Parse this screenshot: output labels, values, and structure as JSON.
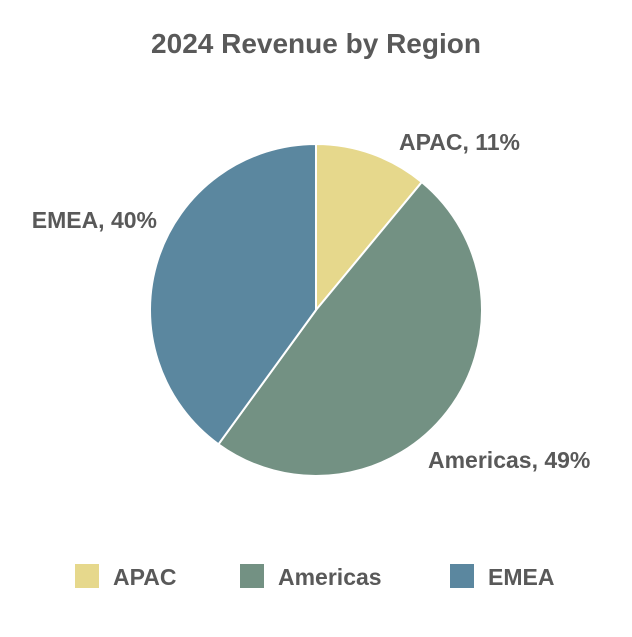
{
  "chart_data": {
    "type": "pie",
    "title": "2024 Revenue by Region",
    "categories": [
      "APAC",
      "Americas",
      "EMEA"
    ],
    "values": [
      11,
      49,
      40
    ],
    "unit": "%",
    "data_labels": [
      "APAC, 11%",
      "Americas, 49%",
      "EMEA, 40%"
    ],
    "colors": [
      "#E6D88C",
      "#739183",
      "#5B879F"
    ],
    "start_angle_deg": 0,
    "direction": "clockwise",
    "legend_position": "bottom"
  }
}
